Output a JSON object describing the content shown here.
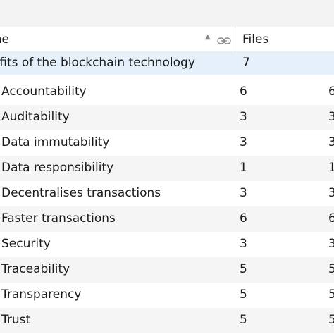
{
  "header": {
    "name_label": "me",
    "files_label": "Files"
  },
  "parent": {
    "name": "nefits of the blockchain technology",
    "files": "7"
  },
  "rows": [
    {
      "name": "Accountability",
      "files": "6",
      "refs": "6"
    },
    {
      "name": "Auditability",
      "files": "3",
      "refs": "3"
    },
    {
      "name": "Data immutability",
      "files": "3",
      "refs": "3"
    },
    {
      "name": "Data responsibility",
      "files": "1",
      "refs": "1"
    },
    {
      "name": "Decentralises transactions",
      "files": "3",
      "refs": "3"
    },
    {
      "name": "Faster transactions",
      "files": "6",
      "refs": "6"
    },
    {
      "name": "Security",
      "files": "3",
      "refs": "3"
    },
    {
      "name": "Traceability",
      "files": "5",
      "refs": "5"
    },
    {
      "name": "Transparency",
      "files": "5",
      "refs": "5"
    },
    {
      "name": "Trust",
      "files": "5",
      "refs": "5"
    }
  ]
}
